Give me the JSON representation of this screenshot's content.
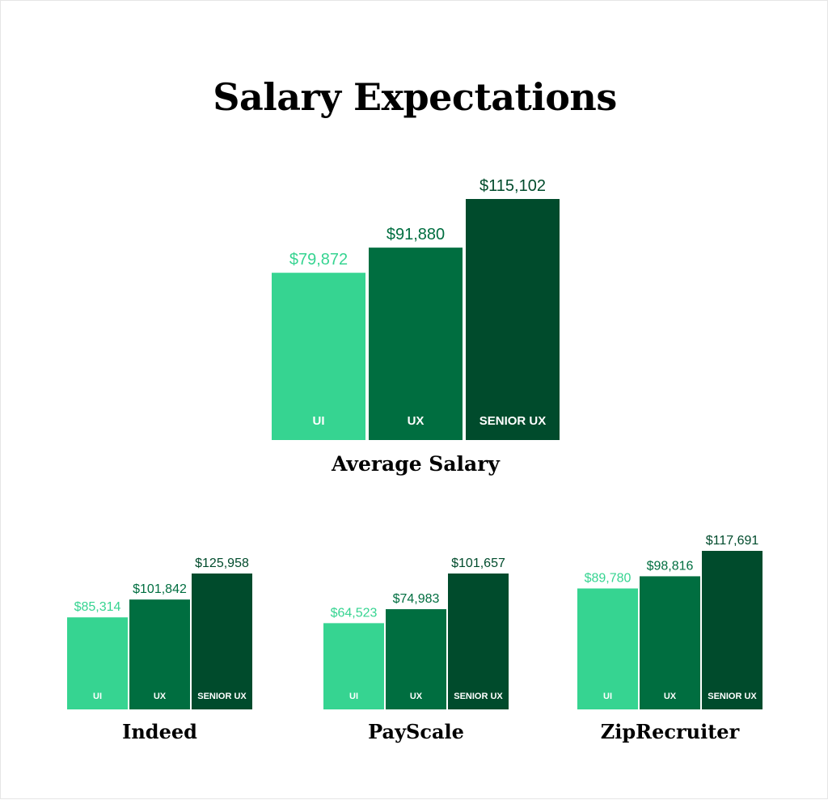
{
  "title": "Salary Expectations",
  "colors": {
    "UI": "#36d491",
    "UX": "#006e40",
    "SENIOR UX": "#004b2c"
  },
  "chart_data": [
    {
      "type": "bar",
      "title": "Average Salary",
      "categories": [
        "UI",
        "UX",
        "SENIOR UX"
      ],
      "values": [
        79872,
        91880,
        115102
      ],
      "labels": [
        "$79,872",
        "$91,880",
        "$115,102"
      ]
    },
    {
      "type": "bar",
      "title": "Indeed",
      "categories": [
        "UI",
        "UX",
        "SENIOR UX"
      ],
      "values": [
        85314,
        101842,
        125958
      ],
      "labels": [
        "$85,314",
        "$101,842",
        "$125,958"
      ]
    },
    {
      "type": "bar",
      "title": "PayScale",
      "categories": [
        "UI",
        "UX",
        "SENIOR UX"
      ],
      "values": [
        64523,
        74983,
        101657
      ],
      "labels": [
        "$64,523",
        "$74,983",
        "$101,657"
      ]
    },
    {
      "type": "bar",
      "title": "ZipRecruiter",
      "categories": [
        "UI",
        "UX",
        "SENIOR UX"
      ],
      "values": [
        89780,
        98816,
        117691
      ],
      "labels": [
        "$89,780",
        "$98,816",
        "$117,691"
      ]
    }
  ]
}
